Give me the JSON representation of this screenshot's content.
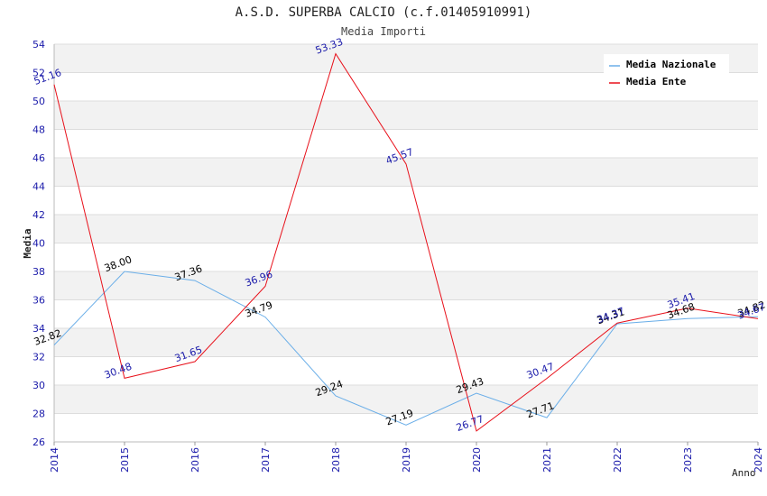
{
  "chart_data": {
    "type": "line",
    "title": "A.S.D. SUPERBA CALCIO (c.f.01405910991)",
    "subtitle": "Media Importi",
    "xlabel": "Anno",
    "ylabel": "Media",
    "x": [
      "2014",
      "2015",
      "2016",
      "2017",
      "2018",
      "2019",
      "2020",
      "2021",
      "2022",
      "2023",
      "2024"
    ],
    "ylim": [
      26,
      54
    ],
    "yticks": [
      "26",
      "28",
      "30",
      "32",
      "34",
      "36",
      "38",
      "40",
      "42",
      "44",
      "46",
      "48",
      "50",
      "52",
      "54"
    ],
    "grid": true,
    "legend_position": "top-right",
    "series": [
      {
        "name": "Media Nazionale",
        "color": "#6aaee8",
        "label_color": "#000000",
        "values": [
          32.82,
          38.0,
          37.36,
          34.79,
          29.24,
          27.19,
          29.43,
          27.71,
          34.31,
          34.68,
          34.82
        ],
        "labels": [
          "32.82",
          "38.00",
          "37.36",
          "34.79",
          "29.24",
          "27.19",
          "29.43",
          "27.71",
          "34.31",
          "34.68",
          "34.82"
        ]
      },
      {
        "name": "Media Ente",
        "color": "#e8101a",
        "label_color": "#1a1aaa",
        "values": [
          51.16,
          30.48,
          31.65,
          36.96,
          53.33,
          45.57,
          26.77,
          30.47,
          34.37,
          35.41,
          34.67
        ],
        "labels": [
          "51.16",
          "30.48",
          "31.65",
          "36.96",
          "53.33",
          "45.57",
          "26.77",
          "30.47",
          "34.37",
          "35.41",
          "34.67"
        ]
      }
    ]
  }
}
